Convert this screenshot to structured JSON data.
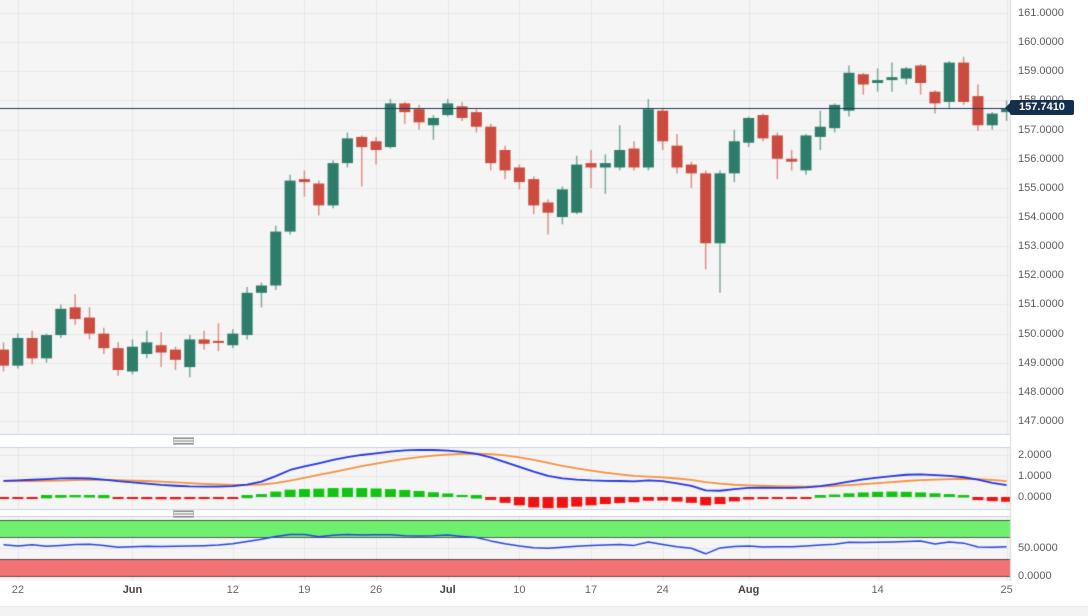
{
  "price_tag": {
    "current_price_label": "157.7410"
  },
  "colors": {
    "pane_bg": "#f5f5f5",
    "grid": "#e8e8e8",
    "axis_bg": "#ffffff",
    "axis_text": "#5c5c5c",
    "candle_up": "#2e7d6b",
    "candle_up_wick": "#7dab9e",
    "candle_down": "#cb4b3f",
    "candle_down_wick": "#dd9187",
    "price_line": "#1e3a5c",
    "price_tag_bg": "#15304e",
    "price_tag_text": "#ffffff",
    "macd_line": "#2336e0",
    "signal_line": "#f69240",
    "hist_up": "#12c412",
    "hist_down": "#f01212",
    "rsi_line": "#2744df",
    "band_green": "#6df06d",
    "band_red": "#f37272",
    "band_border": "#2b2b2b",
    "separator_line": "#ccd4e0",
    "handle": "#999999"
  },
  "chart_data": {
    "type": "candlestick",
    "x_ticks": [
      {
        "label": "22",
        "index": 1,
        "bold": false
      },
      {
        "label": "Jun",
        "index": 9,
        "bold": true
      },
      {
        "label": "12",
        "index": 16,
        "bold": false
      },
      {
        "label": "19",
        "index": 21,
        "bold": false
      },
      {
        "label": "26",
        "index": 26,
        "bold": false
      },
      {
        "label": "Jul",
        "index": 31,
        "bold": true
      },
      {
        "label": "10",
        "index": 36,
        "bold": false
      },
      {
        "label": "17",
        "index": 41,
        "bold": false
      },
      {
        "label": "24",
        "index": 46,
        "bold": false
      },
      {
        "label": "Aug",
        "index": 52,
        "bold": true
      },
      {
        "label": "14",
        "index": 61,
        "bold": false
      },
      {
        "label": "25",
        "index": 70,
        "bold": false
      }
    ],
    "price_pane": {
      "ylim": [
        146.55,
        161.45
      ],
      "axis_labels": [
        "161.0000",
        "160.0000",
        "159.0000",
        "158.0000",
        "157.0000",
        "156.0000",
        "155.0000",
        "154.0000",
        "153.0000",
        "152.0000",
        "151.0000",
        "150.0000",
        "149.0000",
        "148.0000",
        "147.0000"
      ],
      "current_price": 157.741,
      "current_price_label": "157.7410",
      "candles_ohlc": [
        [
          149.45,
          149.7,
          148.7,
          148.9
        ],
        [
          148.9,
          150.0,
          148.8,
          149.85
        ],
        [
          149.85,
          150.1,
          148.95,
          149.15
        ],
        [
          149.15,
          150.0,
          149.0,
          149.95
        ],
        [
          149.95,
          151.0,
          149.85,
          150.85
        ],
        [
          150.9,
          151.35,
          150.3,
          150.5
        ],
        [
          150.55,
          150.9,
          149.8,
          150.0
        ],
        [
          150.0,
          150.2,
          149.3,
          149.5
        ],
        [
          149.5,
          149.7,
          148.55,
          148.75
        ],
        [
          148.7,
          149.8,
          148.6,
          149.55
        ],
        [
          149.3,
          150.1,
          149.15,
          149.7
        ],
        [
          149.6,
          150.05,
          148.85,
          149.35
        ],
        [
          149.45,
          149.55,
          148.75,
          149.1
        ],
        [
          148.85,
          149.95,
          148.5,
          149.8
        ],
        [
          149.8,
          150.1,
          149.45,
          149.65
        ],
        [
          149.75,
          150.35,
          149.4,
          149.7
        ],
        [
          149.6,
          150.15,
          149.5,
          150.0
        ],
        [
          149.95,
          151.6,
          149.8,
          151.4
        ],
        [
          151.4,
          151.75,
          150.9,
          151.65
        ],
        [
          151.65,
          153.7,
          151.5,
          153.5
        ],
        [
          153.5,
          155.45,
          153.4,
          155.25
        ],
        [
          155.3,
          155.6,
          154.7,
          155.2
        ],
        [
          155.15,
          155.25,
          154.05,
          154.4
        ],
        [
          154.4,
          155.95,
          154.3,
          155.85
        ],
        [
          155.85,
          156.9,
          155.7,
          156.7
        ],
        [
          156.75,
          156.8,
          155.05,
          156.4
        ],
        [
          156.6,
          156.75,
          155.8,
          156.3
        ],
        [
          156.4,
          158.05,
          156.35,
          157.9
        ],
        [
          157.9,
          157.95,
          157.2,
          157.6
        ],
        [
          157.7,
          157.85,
          157.0,
          157.25
        ],
        [
          157.15,
          157.5,
          156.65,
          157.4
        ],
        [
          157.5,
          158.05,
          157.45,
          157.9
        ],
        [
          157.8,
          157.95,
          157.3,
          157.4
        ],
        [
          157.6,
          157.7,
          156.9,
          157.1
        ],
        [
          157.1,
          157.2,
          155.6,
          155.85
        ],
        [
          156.3,
          156.45,
          155.3,
          155.6
        ],
        [
          155.7,
          155.8,
          154.95,
          155.2
        ],
        [
          155.3,
          155.4,
          154.1,
          154.4
        ],
        [
          154.5,
          154.6,
          153.4,
          154.15
        ],
        [
          154.0,
          155.05,
          153.75,
          154.95
        ],
        [
          154.15,
          156.1,
          154.1,
          155.8
        ],
        [
          155.85,
          156.3,
          155.0,
          155.7
        ],
        [
          155.7,
          156.15,
          154.8,
          155.85
        ],
        [
          155.7,
          157.15,
          155.6,
          156.3
        ],
        [
          156.35,
          156.6,
          155.6,
          155.7
        ],
        [
          155.7,
          158.05,
          155.6,
          157.7
        ],
        [
          157.65,
          157.75,
          156.3,
          156.6
        ],
        [
          156.45,
          156.85,
          155.5,
          155.7
        ],
        [
          155.8,
          155.9,
          155.0,
          155.5
        ],
        [
          155.5,
          155.6,
          152.2,
          153.1
        ],
        [
          153.1,
          155.6,
          151.4,
          155.5
        ],
        [
          155.5,
          157.0,
          155.2,
          156.6
        ],
        [
          156.55,
          157.45,
          156.4,
          157.4
        ],
        [
          157.5,
          157.55,
          156.6,
          156.7
        ],
        [
          156.8,
          156.9,
          155.3,
          156.0
        ],
        [
          156.0,
          156.3,
          155.6,
          155.9
        ],
        [
          155.6,
          156.85,
          155.45,
          156.8
        ],
        [
          156.75,
          157.65,
          156.3,
          157.1
        ],
        [
          157.05,
          157.9,
          156.9,
          157.85
        ],
        [
          157.65,
          159.2,
          157.45,
          158.95
        ],
        [
          158.9,
          158.95,
          158.2,
          158.55
        ],
        [
          158.6,
          159.1,
          158.3,
          158.7
        ],
        [
          158.7,
          159.3,
          158.3,
          158.8
        ],
        [
          158.75,
          159.15,
          158.55,
          159.1
        ],
        [
          159.2,
          159.25,
          158.2,
          158.6
        ],
        [
          158.3,
          158.35,
          157.55,
          157.9
        ],
        [
          157.95,
          159.35,
          157.7,
          159.3
        ],
        [
          159.3,
          159.5,
          157.85,
          157.95
        ],
        [
          158.15,
          158.55,
          156.95,
          157.15
        ],
        [
          157.15,
          157.6,
          157.0,
          157.55
        ],
        [
          157.6,
          158.0,
          157.3,
          157.74
        ]
      ]
    },
    "macd_pane": {
      "ylim": [
        -0.58,
        2.4
      ],
      "axis_labels": [
        "2.0000",
        "1.0000",
        "0.0000"
      ],
      "axis_values": [
        2,
        1,
        0
      ],
      "macd": [
        0.78,
        0.8,
        0.83,
        0.86,
        0.9,
        0.91,
        0.89,
        0.84,
        0.76,
        0.7,
        0.64,
        0.58,
        0.54,
        0.51,
        0.5,
        0.5,
        0.52,
        0.6,
        0.74,
        1.0,
        1.3,
        1.47,
        1.62,
        1.78,
        1.92,
        2.02,
        2.1,
        2.18,
        2.24,
        2.27,
        2.26,
        2.23,
        2.17,
        2.07,
        1.9,
        1.68,
        1.45,
        1.22,
        1.02,
        0.9,
        0.84,
        0.8,
        0.78,
        0.77,
        0.75,
        0.8,
        0.76,
        0.66,
        0.54,
        0.32,
        0.3,
        0.38,
        0.44,
        0.45,
        0.44,
        0.44,
        0.46,
        0.52,
        0.62,
        0.74,
        0.85,
        0.93,
        1.0,
        1.07,
        1.09,
        1.05,
        1.02,
        0.95,
        0.83,
        0.68,
        0.57
      ],
      "signal": [
        0.76,
        0.76,
        0.77,
        0.78,
        0.79,
        0.81,
        0.82,
        0.82,
        0.81,
        0.79,
        0.77,
        0.74,
        0.7,
        0.67,
        0.63,
        0.6,
        0.58,
        0.58,
        0.6,
        0.67,
        0.79,
        0.92,
        1.06,
        1.2,
        1.34,
        1.48,
        1.6,
        1.72,
        1.83,
        1.92,
        1.99,
        2.04,
        2.07,
        2.08,
        2.06,
        2.0,
        1.9,
        1.78,
        1.64,
        1.5,
        1.38,
        1.27,
        1.17,
        1.09,
        1.02,
        0.98,
        0.94,
        0.89,
        0.82,
        0.72,
        0.64,
        0.59,
        0.56,
        0.54,
        0.52,
        0.51,
        0.5,
        0.51,
        0.53,
        0.57,
        0.62,
        0.67,
        0.72,
        0.77,
        0.81,
        0.84,
        0.86,
        0.87,
        0.86,
        0.82,
        0.76
      ],
      "histogram": [
        -0.05,
        -0.04,
        -0.02,
        0.03,
        0.06,
        0.08,
        0.07,
        0.04,
        -0.05,
        -0.08,
        -0.1,
        -0.11,
        -0.11,
        -0.1,
        -0.09,
        -0.07,
        -0.05,
        0.04,
        0.14,
        0.26,
        0.35,
        0.38,
        0.4,
        0.43,
        0.44,
        0.43,
        0.41,
        0.38,
        0.34,
        0.29,
        0.23,
        0.17,
        0.1,
        0.02,
        -0.14,
        -0.28,
        -0.4,
        -0.5,
        -0.54,
        -0.52,
        -0.46,
        -0.4,
        -0.34,
        -0.29,
        -0.25,
        -0.18,
        -0.17,
        -0.22,
        -0.28,
        -0.4,
        -0.34,
        -0.21,
        -0.12,
        -0.09,
        -0.08,
        -0.07,
        -0.04,
        0.06,
        0.12,
        0.18,
        0.22,
        0.25,
        0.26,
        0.25,
        0.22,
        0.18,
        0.14,
        0.07,
        -0.15,
        -0.2,
        -0.23
      ]
    },
    "rsi_pane": {
      "ylim": [
        -8,
        107
      ],
      "axis_labels": [
        "50.0000",
        "0.0000"
      ],
      "axis_values": [
        50,
        0
      ],
      "overbought_band": [
        70,
        100
      ],
      "oversold_band": [
        0,
        30
      ],
      "rsi": [
        56,
        54,
        56,
        53.5,
        55,
        56.5,
        57,
        55,
        51.5,
        52.5,
        53.5,
        53,
        53.5,
        54,
        54.5,
        55.5,
        58,
        62,
        66,
        71,
        74.5,
        74.5,
        70.5,
        73,
        74.5,
        73.5,
        73.8,
        74,
        72,
        71.5,
        72,
        73.5,
        71,
        69,
        63,
        58,
        54,
        51,
        50,
        51.5,
        53.5,
        55,
        55.5,
        56.5,
        55,
        61,
        56.5,
        52.5,
        50,
        40,
        50.5,
        53,
        54,
        52,
        52.5,
        52.5,
        54,
        55.5,
        57,
        60.5,
        60,
        60.5,
        61,
        62,
        63,
        57.5,
        61,
        59,
        52,
        51.5,
        52.5
      ]
    }
  }
}
